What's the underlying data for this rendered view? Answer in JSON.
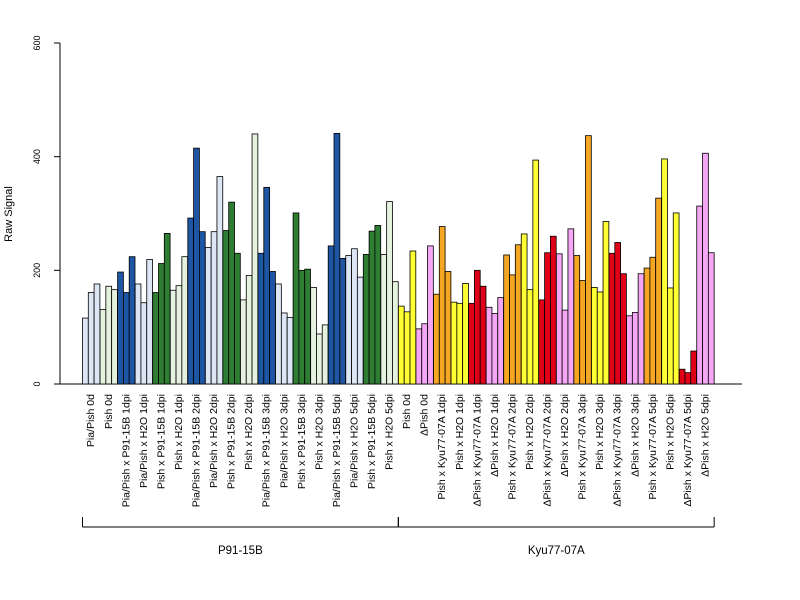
{
  "chart_data": {
    "type": "bar",
    "title": "",
    "xlabel": "",
    "ylabel": "Raw Signal",
    "ylim": [
      0,
      600
    ],
    "yticks": [
      0,
      200,
      400,
      600
    ],
    "grid": false,
    "legend": "none",
    "replicates_per_condition": 3,
    "colors": {
      "light_blue": "#dce6f5",
      "dark_blue": "#1f56a4",
      "light_green": "#e5f2df",
      "dark_green": "#2e7d32",
      "yellow": "#ffff33",
      "pink": "#f5a6f5",
      "red": "#e00018",
      "orange": "#f5a623"
    },
    "categories": [
      {
        "label": "Pia/Pish 0d",
        "color": "light_blue",
        "values": [
          116,
          161,
          176
        ]
      },
      {
        "label": "Pish 0d",
        "color": "light_green",
        "values": [
          131,
          172,
          166
        ]
      },
      {
        "label": "Pia/Pish x P91-15B 1dpi",
        "color": "dark_blue",
        "values": [
          197,
          161,
          224
        ]
      },
      {
        "label": "Pia/Pish x H2O 1dpi",
        "color": "light_blue",
        "values": [
          176,
          143,
          219
        ]
      },
      {
        "label": "Pish x P91-15B 1dpi",
        "color": "dark_green",
        "values": [
          161,
          212,
          265
        ]
      },
      {
        "label": "Pish x H2O 1dpi",
        "color": "light_green",
        "values": [
          165,
          173,
          224
        ]
      },
      {
        "label": "Pia/Pish x P91-15B 2dpi",
        "color": "dark_blue",
        "values": [
          292,
          415,
          268
        ]
      },
      {
        "label": "Pia/Pish x H2O 2dpi",
        "color": "light_blue",
        "values": [
          240,
          268,
          365
        ]
      },
      {
        "label": "Pish x P91-15B 2dpi",
        "color": "dark_green",
        "values": [
          270,
          320,
          230
        ]
      },
      {
        "label": "Pish x H2O 2dpi",
        "color": "light_green",
        "values": [
          148,
          191,
          440
        ]
      },
      {
        "label": "Pia/Pish x P91-15B 3dpi",
        "color": "dark_blue",
        "values": [
          230,
          346,
          198
        ]
      },
      {
        "label": "Pia/Pish x H2O 3dpi",
        "color": "light_blue",
        "values": [
          176,
          125,
          117
        ]
      },
      {
        "label": "Pish x P91-15B 3dpi",
        "color": "dark_green",
        "values": [
          301,
          200,
          202
        ]
      },
      {
        "label": "Pish x H2O 3dpi",
        "color": "light_green",
        "values": [
          170,
          88,
          104
        ]
      },
      {
        "label": "Pia/Pish x P91-15B 5dpi",
        "color": "dark_blue",
        "values": [
          243,
          441,
          221
        ]
      },
      {
        "label": "Pia/Pish x H2O 5dpi",
        "color": "light_blue",
        "values": [
          226,
          238,
          188
        ]
      },
      {
        "label": "Pish x P91-15B 5dpi",
        "color": "dark_green",
        "values": [
          228,
          269,
          279
        ]
      },
      {
        "label": "Pish x H2O 5dpi",
        "color": "light_green",
        "values": [
          228,
          321,
          180
        ]
      },
      {
        "label": "Pish 0d",
        "color": "yellow",
        "values": [
          137,
          127,
          234
        ]
      },
      {
        "label": "ΔPish 0d",
        "color": "pink",
        "values": [
          97,
          106,
          243
        ]
      },
      {
        "label": "Pish x Kyu77-07A 1dpi",
        "color": "orange",
        "values": [
          158,
          277,
          198
        ]
      },
      {
        "label": "Pish x H2O 1dpi",
        "color": "yellow",
        "values": [
          144,
          142,
          177
        ]
      },
      {
        "label": "ΔPish x Kyu77-07A 1dpi",
        "color": "red",
        "values": [
          142,
          200,
          172
        ]
      },
      {
        "label": "ΔPish x H2O 1dpi",
        "color": "pink",
        "values": [
          135,
          124,
          152
        ]
      },
      {
        "label": "Pish x Kyu77-07A 2dpi",
        "color": "orange",
        "values": [
          227,
          192,
          245
        ]
      },
      {
        "label": "Pish x H2O 2dpi",
        "color": "yellow",
        "values": [
          264,
          166,
          394
        ]
      },
      {
        "label": "ΔPish x Kyu77-07A 2dpi",
        "color": "red",
        "values": [
          148,
          231,
          260
        ]
      },
      {
        "label": "ΔPish x H2O 2dpi",
        "color": "pink",
        "values": [
          229,
          130,
          273
        ]
      },
      {
        "label": "Pish x Kyu77-07A 3dpi",
        "color": "orange",
        "values": [
          226,
          182,
          437
        ]
      },
      {
        "label": "Pish x H2O 3dpi",
        "color": "yellow",
        "values": [
          170,
          162,
          286
        ]
      },
      {
        "label": "ΔPish x Kyu77-07A 3dpi",
        "color": "red",
        "values": [
          230,
          249,
          194
        ]
      },
      {
        "label": "ΔPish x H2O 3dpi",
        "color": "pink",
        "values": [
          120,
          126,
          194
        ]
      },
      {
        "label": "Pish x Kyu77-07A 5dpi",
        "color": "orange",
        "values": [
          204,
          223,
          327
        ]
      },
      {
        "label": "Pish x H2O 5dpi",
        "color": "yellow",
        "values": [
          396,
          169,
          301
        ]
      },
      {
        "label": "ΔPish x Kyu77-07A 5dpi",
        "color": "red",
        "values": [
          26,
          20,
          58
        ]
      },
      {
        "label": "ΔPish x H2O 5dpi",
        "color": "pink",
        "values": [
          313,
          406,
          231
        ]
      }
    ],
    "groups": [
      {
        "label": "P91-15B",
        "start": 0,
        "end": 17
      },
      {
        "label": "Kyu77-07A",
        "start": 18,
        "end": 35
      }
    ]
  }
}
